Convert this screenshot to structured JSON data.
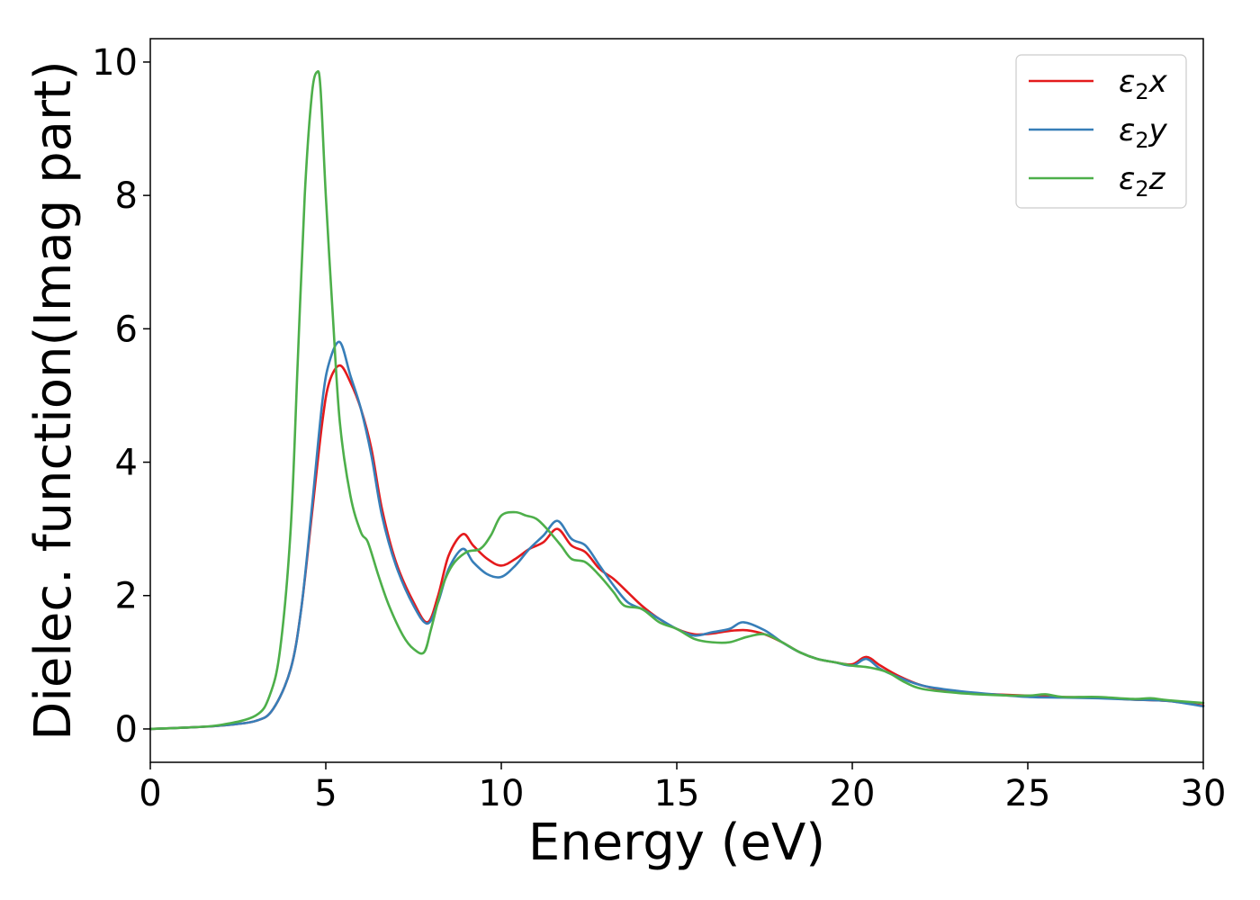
{
  "chart_data": {
    "type": "line",
    "title": "",
    "xlabel": "Energy (eV)",
    "ylabel": "Dielec. function(Imag part)",
    "xlim": [
      0,
      30
    ],
    "ylim": [
      -0.5,
      10.35
    ],
    "xticks": [
      0,
      5,
      10,
      15,
      20,
      25,
      30
    ],
    "yticks": [
      0,
      2,
      4,
      6,
      8,
      10
    ],
    "grid": false,
    "legend_position": "top-right",
    "series": [
      {
        "name_main": "ε",
        "name_sub": "2",
        "name_suffix": "x",
        "color": "#e41a1c",
        "x": [
          0,
          1,
          2,
          3,
          3.5,
          4.0,
          4.3,
          4.6,
          4.9,
          5.1,
          5.4,
          5.7,
          6.0,
          6.3,
          6.6,
          7.0,
          7.5,
          7.9,
          8.2,
          8.5,
          8.9,
          9.2,
          9.6,
          10.0,
          10.4,
          10.8,
          11.2,
          11.6,
          12.0,
          12.4,
          12.8,
          13.2,
          13.6,
          14.0,
          14.5,
          15.0,
          15.5,
          16.0,
          16.5,
          17.0,
          17.5,
          18.0,
          18.5,
          19.0,
          19.5,
          20.0,
          20.4,
          20.8,
          21.3,
          22.0,
          23.0,
          24.0,
          25.0,
          26.0,
          27.0,
          28.0,
          29.0,
          30.0
        ],
        "y": [
          0.0,
          0.02,
          0.05,
          0.12,
          0.3,
          0.9,
          1.8,
          3.2,
          4.6,
          5.2,
          5.45,
          5.2,
          4.8,
          4.2,
          3.3,
          2.5,
          1.9,
          1.6,
          2.0,
          2.6,
          2.92,
          2.75,
          2.55,
          2.45,
          2.55,
          2.7,
          2.8,
          3.0,
          2.75,
          2.65,
          2.4,
          2.25,
          2.05,
          1.85,
          1.65,
          1.5,
          1.42,
          1.43,
          1.47,
          1.48,
          1.42,
          1.3,
          1.15,
          1.05,
          1.0,
          0.97,
          1.08,
          0.95,
          0.8,
          0.65,
          0.55,
          0.52,
          0.5,
          0.48,
          0.47,
          0.44,
          0.42,
          0.35
        ]
      },
      {
        "name_main": "ε",
        "name_sub": "2",
        "name_suffix": "y",
        "color": "#377eb8",
        "x": [
          0,
          1,
          2,
          3,
          3.5,
          4.0,
          4.3,
          4.6,
          4.9,
          5.1,
          5.4,
          5.7,
          6.0,
          6.3,
          6.6,
          7.0,
          7.5,
          7.9,
          8.2,
          8.5,
          8.9,
          9.2,
          9.6,
          10.0,
          10.4,
          10.8,
          11.2,
          11.6,
          12.0,
          12.4,
          12.8,
          13.2,
          13.6,
          14.0,
          14.5,
          15.0,
          15.5,
          16.0,
          16.5,
          16.9,
          17.5,
          18.0,
          18.5,
          19.0,
          19.5,
          20.0,
          20.4,
          20.8,
          21.3,
          22.0,
          23.0,
          24.0,
          25.0,
          26.0,
          27.0,
          28.0,
          29.0,
          30.0
        ],
        "y": [
          0.0,
          0.02,
          0.05,
          0.12,
          0.3,
          0.9,
          1.8,
          3.3,
          4.9,
          5.5,
          5.8,
          5.3,
          4.8,
          4.1,
          3.2,
          2.45,
          1.85,
          1.58,
          1.9,
          2.4,
          2.7,
          2.5,
          2.32,
          2.28,
          2.45,
          2.7,
          2.9,
          3.12,
          2.85,
          2.75,
          2.45,
          2.15,
          1.9,
          1.8,
          1.65,
          1.5,
          1.4,
          1.45,
          1.5,
          1.6,
          1.48,
          1.3,
          1.15,
          1.05,
          1.0,
          0.95,
          1.05,
          0.9,
          0.78,
          0.65,
          0.57,
          0.52,
          0.48,
          0.47,
          0.46,
          0.44,
          0.42,
          0.34
        ]
      },
      {
        "name_main": "ε",
        "name_sub": "2",
        "name_suffix": "z",
        "color": "#4daf4a",
        "x": [
          0,
          1,
          2,
          3,
          3.4,
          3.7,
          4.0,
          4.2,
          4.4,
          4.6,
          4.75,
          4.85,
          5.0,
          5.2,
          5.4,
          5.7,
          6.0,
          6.2,
          6.5,
          6.8,
          7.2,
          7.5,
          7.8,
          8.0,
          8.3,
          8.6,
          9.0,
          9.4,
          9.7,
          10.0,
          10.4,
          10.7,
          11.0,
          11.3,
          11.7,
          12.0,
          12.4,
          12.8,
          13.2,
          13.5,
          14.0,
          14.5,
          15.0,
          15.5,
          16.0,
          16.5,
          17.0,
          17.5,
          18.0,
          18.5,
          19.0,
          19.5,
          20.0,
          20.5,
          21.0,
          21.5,
          22.0,
          23.0,
          24.0,
          25.0,
          25.5,
          26.0,
          27.0,
          28.0,
          28.5,
          29.0,
          30.0
        ],
        "y": [
          0.0,
          0.02,
          0.06,
          0.2,
          0.5,
          1.2,
          3.0,
          5.5,
          8.0,
          9.5,
          9.85,
          9.6,
          8.0,
          6.2,
          4.6,
          3.5,
          2.95,
          2.8,
          2.3,
          1.85,
          1.4,
          1.2,
          1.15,
          1.5,
          2.1,
          2.45,
          2.65,
          2.7,
          2.9,
          3.2,
          3.25,
          3.2,
          3.15,
          3.0,
          2.75,
          2.55,
          2.5,
          2.3,
          2.05,
          1.85,
          1.8,
          1.6,
          1.5,
          1.35,
          1.3,
          1.3,
          1.38,
          1.42,
          1.3,
          1.15,
          1.05,
          1.0,
          0.95,
          0.92,
          0.85,
          0.7,
          0.6,
          0.54,
          0.51,
          0.5,
          0.52,
          0.48,
          0.48,
          0.45,
          0.46,
          0.43,
          0.39
        ]
      }
    ]
  }
}
